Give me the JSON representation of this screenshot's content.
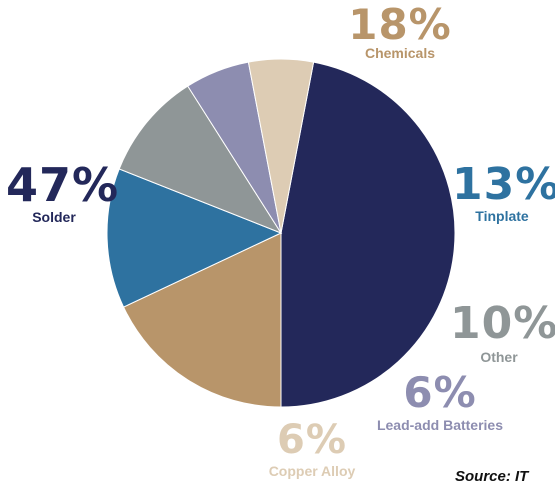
{
  "chart_data": {
    "type": "pie",
    "slices": [
      {
        "label": "Solder",
        "value": 47,
        "display": "47%",
        "color": "#23285a"
      },
      {
        "label": "Chemicals",
        "value": 18,
        "display": "18%",
        "color": "#b8956a"
      },
      {
        "label": "Tinplate",
        "value": 13,
        "display": "13%",
        "color": "#2e72a0"
      },
      {
        "label": "Other",
        "value": 10,
        "display": "10%",
        "color": "#8f9697"
      },
      {
        "label": "Lead-add Batteries",
        "value": 6,
        "display": "6%",
        "color": "#8d8db0"
      },
      {
        "label": "Copper Alloy",
        "value": 6,
        "display": "6%",
        "color": "#ddccb4"
      }
    ],
    "source": "Source: IT"
  }
}
